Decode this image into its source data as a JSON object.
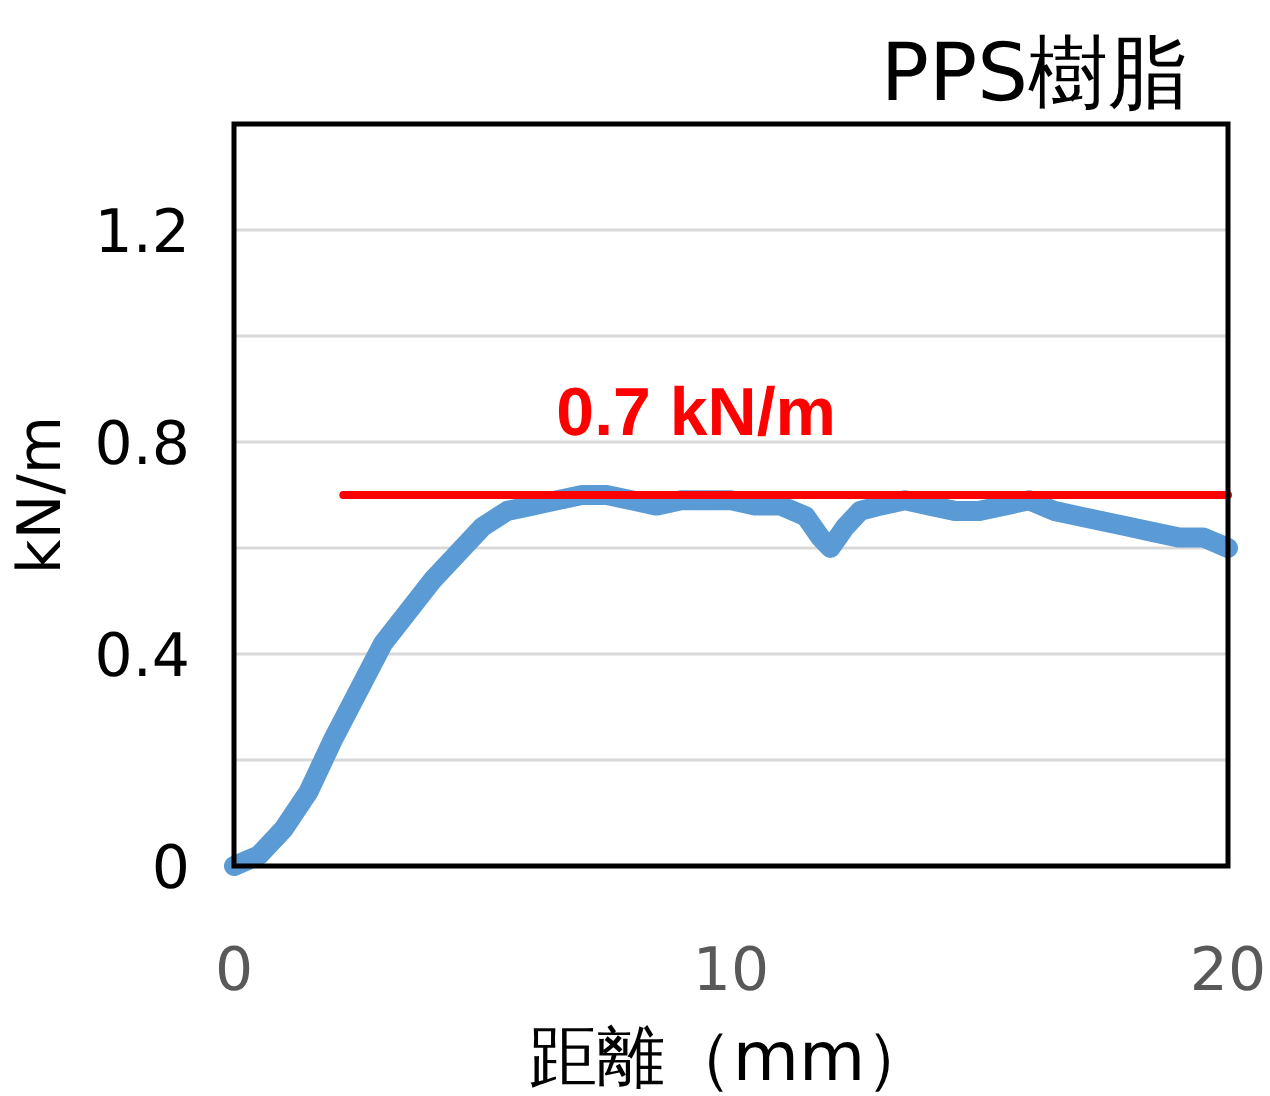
{
  "chart_data": {
    "type": "line",
    "title": "PPS樹脂",
    "xlabel": "距離（mm）",
    "ylabel": "kN/m",
    "xlim": [
      0,
      20
    ],
    "xticks": [
      0,
      10,
      20
    ],
    "ylim": [
      0,
      1.4
    ],
    "yticks": [
      0,
      {
        "value": 0.2,
        "label": null
      },
      0.4,
      {
        "value": 0.6,
        "label": null
      },
      0.8,
      {
        "value": 1.0,
        "label": null
      },
      1.2,
      {
        "value": 1.4,
        "label": null
      }
    ],
    "grid": "y",
    "series": [
      {
        "color": "#5b9bd5",
        "x": [
          0,
          0.5,
          1,
          1.5,
          2,
          2.5,
          3,
          3.5,
          4,
          4.5,
          5,
          5.5,
          6,
          6.5,
          7,
          7.5,
          8,
          8.5,
          9,
          9.5,
          10,
          10.5,
          11,
          11.5,
          11.8,
          12,
          12.3,
          12.6,
          13,
          13.5,
          14,
          14.5,
          15,
          15.5,
          16,
          16.5,
          17,
          17.5,
          18,
          18.5,
          19,
          19.5,
          20
        ],
        "values": [
          0,
          0.02,
          0.07,
          0.14,
          0.24,
          0.33,
          0.42,
          0.48,
          0.54,
          0.59,
          0.64,
          0.67,
          0.68,
          0.69,
          0.7,
          0.7,
          0.69,
          0.68,
          0.69,
          0.69,
          0.69,
          0.68,
          0.68,
          0.66,
          0.62,
          0.6,
          0.64,
          0.67,
          0.68,
          0.69,
          0.68,
          0.67,
          0.67,
          0.68,
          0.69,
          0.67,
          0.66,
          0.65,
          0.64,
          0.63,
          0.62,
          0.62,
          0.6
        ]
      },
      {
        "type": "line",
        "color": "#ff0000",
        "x": [
          2.2,
          20
        ],
        "values": [
          0.7,
          0.7
        ]
      }
    ],
    "annotations": [
      {
        "text": "0.7 kN/m",
        "x": 9.3,
        "y": 0.7
      }
    ]
  }
}
